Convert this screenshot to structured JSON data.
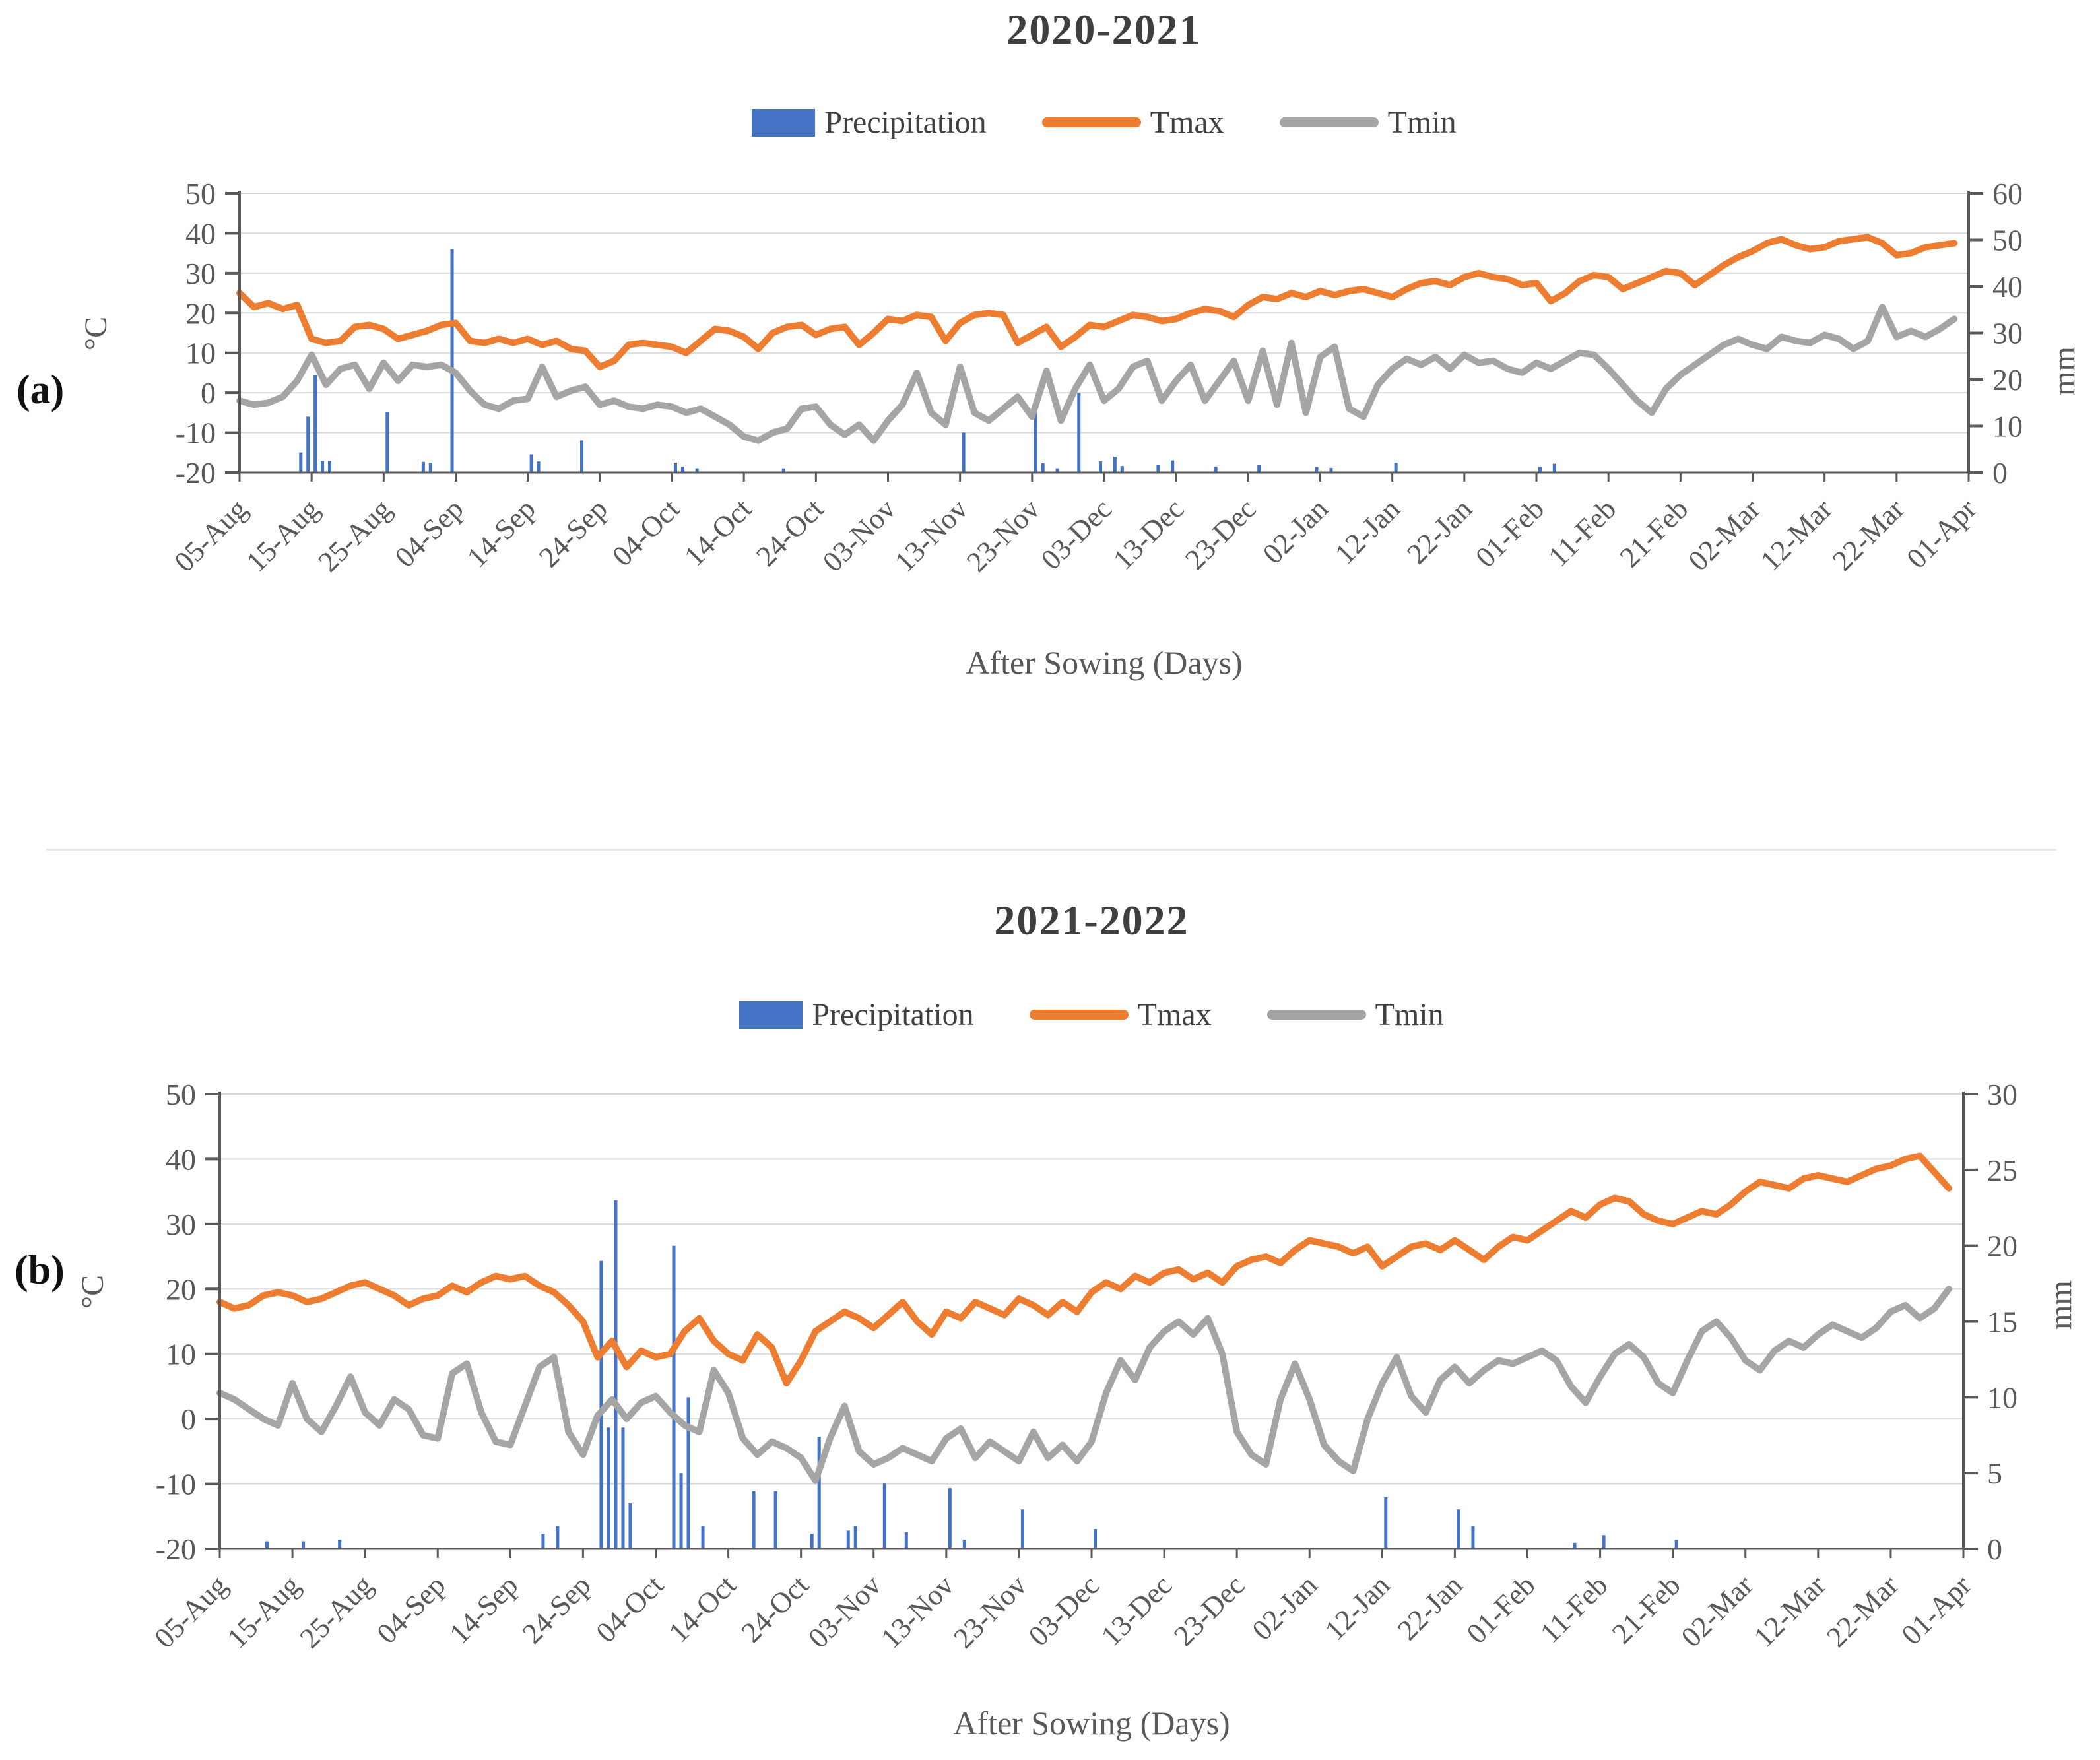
{
  "ui": {
    "panel_a_label": "(a)",
    "panel_b_label": "(b)"
  },
  "style": {
    "grid_color": "#d9d9d9",
    "axis_color": "#595959",
    "tick_text_color": "#595959",
    "title_color": "#3f3f3f",
    "precipitation_color": "#4472C4",
    "tmax_color": "#ED7D31",
    "tmin_color": "#A5A5A5"
  },
  "chart_data": [
    {
      "panel": "a",
      "type": "combo-bar-line",
      "title": "2020-2021",
      "x_axis": {
        "title": "After Sowing (Days)",
        "categories": [
          "05-Aug",
          "15-Aug",
          "25-Aug",
          "04-Sep",
          "14-Sep",
          "24-Sep",
          "04-Oct",
          "14-Oct",
          "24-Oct",
          "03-Nov",
          "13-Nov",
          "23-Nov",
          "03-Dec",
          "13-Dec",
          "23-Dec",
          "02-Jan",
          "12-Jan",
          "22-Jan",
          "01-Feb",
          "11-Feb",
          "21-Feb",
          "02-Mar",
          "12-Mar",
          "22-Mar",
          "01-Apr"
        ],
        "tick_interval_days": 10,
        "total_days": 240
      },
      "y_left": {
        "title": "°C",
        "min": -20,
        "max": 50,
        "ticks": [
          50,
          40,
          30,
          20,
          10,
          0,
          -10,
          -20
        ]
      },
      "y_right": {
        "title": "mm",
        "min": 0,
        "max": 60,
        "ticks": [
          60,
          50,
          40,
          30,
          20,
          10,
          0
        ]
      },
      "series": [
        {
          "name": "Precipitation",
          "type": "bar",
          "axis": "right",
          "color": "#4472C4",
          "points": [
            [
              8,
              4.3
            ],
            [
              9,
              12
            ],
            [
              10,
              21
            ],
            [
              11,
              2.5
            ],
            [
              12,
              2.5
            ],
            [
              20,
              13
            ],
            [
              25,
              2.3
            ],
            [
              26,
              2.1
            ],
            [
              29,
              48
            ],
            [
              40,
              3.9
            ],
            [
              41,
              2.4
            ],
            [
              47,
              6.9
            ],
            [
              60,
              2.1
            ],
            [
              61,
              1.3
            ],
            [
              63,
              0.9
            ],
            [
              75,
              0.9
            ],
            [
              100,
              8.6
            ],
            [
              110,
              14.4
            ],
            [
              111,
              2.0
            ],
            [
              113,
              0.9
            ],
            [
              116,
              17.1
            ],
            [
              119,
              2.4
            ],
            [
              121,
              3.4
            ],
            [
              122,
              1.4
            ],
            [
              127,
              1.7
            ],
            [
              129,
              2.6
            ],
            [
              135,
              1.3
            ],
            [
              141,
              1.7
            ],
            [
              149,
              1.2
            ],
            [
              151,
              1.0
            ],
            [
              160,
              2.1
            ],
            [
              180,
              1.2
            ],
            [
              182,
              1.9
            ]
          ]
        },
        {
          "name": "Tmax",
          "type": "line",
          "axis": "left",
          "color": "#ED7D31",
          "day_step": 2,
          "values": [
            25,
            21.5,
            22.5,
            21,
            22,
            13.5,
            12.5,
            13,
            16.5,
            17,
            16,
            13.5,
            14.5,
            15.5,
            17,
            17.5,
            13,
            12.5,
            13.5,
            12.5,
            13.5,
            12,
            13,
            11,
            10.5,
            6.5,
            8,
            12,
            12.5,
            12,
            11.5,
            10,
            13,
            16,
            15.5,
            14,
            11,
            15,
            16.5,
            17,
            14.5,
            16,
            16.5,
            12,
            15,
            18.5,
            18,
            19.5,
            19,
            13,
            17.5,
            19.5,
            20,
            19.5,
            12.5,
            14.5,
            16.5,
            11.5,
            14,
            17,
            16.5,
            18,
            19.5,
            19,
            18,
            18.5,
            20,
            21,
            20.5,
            19,
            22,
            24,
            23.5,
            25,
            24,
            25.5,
            24.5,
            25.5,
            26,
            25,
            24,
            26,
            27.5,
            28,
            27,
            29,
            30,
            29,
            28.5,
            27,
            27.5,
            23,
            25,
            28,
            29.5,
            29,
            26,
            27.5,
            29,
            30.5,
            30,
            27,
            29.5,
            32,
            34,
            35.5,
            37.5,
            38.5,
            37,
            36,
            36.5,
            38,
            38.5,
            39,
            37.5,
            34.5,
            35,
            36.5,
            37,
            37.5
          ]
        },
        {
          "name": "Tmin",
          "type": "line",
          "axis": "left",
          "color": "#A5A5A5",
          "day_step": 2,
          "values": [
            -2,
            -3,
            -2.5,
            -1,
            3,
            9.5,
            2,
            6,
            7,
            1,
            7.5,
            3,
            7,
            6.5,
            7,
            5,
            0.5,
            -3,
            -4,
            -2,
            -1.5,
            6.5,
            -1,
            0.5,
            1.5,
            -3,
            -2,
            -3.5,
            -4,
            -3,
            -3.5,
            -5,
            -4,
            -6,
            -8,
            -11,
            -12,
            -10,
            -9,
            -4,
            -3.5,
            -8,
            -10.5,
            -8,
            -12,
            -7,
            -3,
            5,
            -5,
            -8,
            6.5,
            -5,
            -7,
            -4,
            -1,
            -6,
            5.5,
            -7,
            1,
            7,
            -2,
            1,
            6.5,
            8,
            -2,
            3,
            7,
            -2,
            3,
            8,
            -2,
            10.5,
            -3,
            12.5,
            -5,
            9,
            11.5,
            -4,
            -6,
            2,
            6,
            8.5,
            7,
            9,
            6,
            9.5,
            7.5,
            8,
            6,
            5,
            7.5,
            6,
            8,
            10,
            9.5,
            6,
            2,
            -2,
            -5,
            1,
            4.5,
            7,
            9.5,
            12,
            13.5,
            12,
            11,
            14,
            13,
            12.5,
            14.5,
            13.5,
            11,
            13,
            21.5,
            14,
            15.5,
            14,
            16,
            18.5
          ]
        }
      ]
    },
    {
      "panel": "b",
      "type": "combo-bar-line",
      "title": "2021-2022",
      "x_axis": {
        "title": "After Sowing (Days)",
        "categories": [
          "05-Aug",
          "15-Aug",
          "25-Aug",
          "04-Sep",
          "14-Sep",
          "24-Sep",
          "04-Oct",
          "14-Oct",
          "24-Oct",
          "03-Nov",
          "13-Nov",
          "23-Nov",
          "03-Dec",
          "13-Dec",
          "23-Dec",
          "02-Jan",
          "12-Jan",
          "22-Jan",
          "01-Feb",
          "11-Feb",
          "21-Feb",
          "02-Mar",
          "12-Mar",
          "22-Mar",
          "01-Apr"
        ],
        "tick_interval_days": 10,
        "total_days": 240
      },
      "y_left": {
        "title": "°C",
        "min": -20,
        "max": 50,
        "ticks": [
          50,
          40,
          30,
          20,
          10,
          0,
          -10,
          -20
        ]
      },
      "y_right": {
        "title": "mm",
        "min": 0,
        "max": 30,
        "ticks": [
          30,
          25,
          20,
          15,
          10,
          5,
          0
        ]
      },
      "series": [
        {
          "name": "Precipitation",
          "type": "bar",
          "axis": "right",
          "color": "#4472C4",
          "points": [
            [
              6,
              0.5
            ],
            [
              11,
              0.5
            ],
            [
              16,
              0.6
            ],
            [
              44,
              1.0
            ],
            [
              46,
              1.5
            ],
            [
              52,
              19
            ],
            [
              53,
              8
            ],
            [
              54,
              23
            ],
            [
              55,
              8
            ],
            [
              56,
              3
            ],
            [
              62,
              20
            ],
            [
              63,
              5
            ],
            [
              64,
              10
            ],
            [
              66,
              1.5
            ],
            [
              73,
              3.8
            ],
            [
              76,
              3.8
            ],
            [
              81,
              1.0
            ],
            [
              82,
              7.4
            ],
            [
              86,
              1.2
            ],
            [
              87,
              1.5
            ],
            [
              91,
              4.3
            ],
            [
              94,
              1.1
            ],
            [
              100,
              4.0
            ],
            [
              102,
              0.6
            ],
            [
              110,
              2.6
            ],
            [
              120,
              1.3
            ],
            [
              160,
              3.4
            ],
            [
              170,
              2.6
            ],
            [
              172,
              1.5
            ],
            [
              186,
              0.4
            ],
            [
              190,
              0.9
            ],
            [
              200,
              0.6
            ]
          ]
        },
        {
          "name": "Tmax",
          "type": "line",
          "axis": "left",
          "color": "#ED7D31",
          "day_step": 2,
          "values": [
            18,
            17,
            17.5,
            19,
            19.5,
            19,
            18,
            18.5,
            19.5,
            20.5,
            21,
            20,
            19,
            17.5,
            18.5,
            19,
            20.5,
            19.5,
            21,
            22,
            21.5,
            22,
            20.5,
            19.5,
            17.5,
            15,
            9.5,
            12,
            8,
            10.5,
            9.5,
            10,
            13.5,
            15.5,
            12,
            10,
            9,
            13,
            11,
            5.5,
            9,
            13.5,
            15,
            16.5,
            15.5,
            14,
            16,
            18,
            15,
            13,
            16.5,
            15.5,
            18,
            17,
            16,
            18.5,
            17.5,
            16,
            18,
            16.5,
            19.5,
            21,
            20,
            22,
            21,
            22.5,
            23,
            21.5,
            22.5,
            21,
            23.5,
            24.5,
            25,
            24,
            26,
            27.5,
            27,
            26.5,
            25.5,
            26.5,
            23.5,
            25,
            26.5,
            27,
            26,
            27.5,
            26,
            24.5,
            26.5,
            28,
            27.5,
            29,
            30.5,
            32,
            31,
            33,
            34,
            33.5,
            31.5,
            30.5,
            30,
            31,
            32,
            31.5,
            33,
            35,
            36.5,
            36,
            35.5,
            37,
            37.5,
            37,
            36.5,
            37.5,
            38.5,
            39,
            40,
            40.5,
            38,
            35.5
          ]
        },
        {
          "name": "Tmin",
          "type": "line",
          "axis": "left",
          "color": "#A5A5A5",
          "day_step": 2,
          "values": [
            4,
            3,
            1.5,
            0,
            -1,
            5.5,
            0,
            -2,
            2,
            6.5,
            1,
            -1,
            3,
            1.5,
            -2.5,
            -3,
            7,
            8.5,
            1,
            -3.5,
            -4,
            2,
            8,
            9.5,
            -2,
            -5.5,
            0.5,
            3,
            0,
            2.5,
            3.5,
            1,
            -1,
            -2,
            7.5,
            4,
            -3,
            -5.5,
            -3.5,
            -4.5,
            -6,
            -9.5,
            -3,
            2,
            -5,
            -7,
            -6,
            -4.5,
            -5.5,
            -6.5,
            -3,
            -1.5,
            -6,
            -3.5,
            -5,
            -6.5,
            -2,
            -6,
            -4,
            -6.5,
            -3.5,
            4,
            9,
            6,
            11,
            13.5,
            15,
            13,
            15.5,
            10,
            -2,
            -5.5,
            -7,
            3,
            8.5,
            3,
            -4,
            -6.5,
            -8,
            0,
            5.5,
            9.5,
            3.5,
            1,
            6,
            8,
            5.5,
            7.5,
            9,
            8.5,
            9.5,
            10.5,
            9,
            5,
            2.5,
            6.5,
            10,
            11.5,
            9.5,
            5.5,
            4,
            9,
            13.5,
            15,
            12.5,
            9,
            7.5,
            10.5,
            12,
            11,
            13,
            14.5,
            13.5,
            12.5,
            14,
            16.5,
            17.5,
            15.5,
            17,
            20
          ]
        }
      ]
    }
  ]
}
